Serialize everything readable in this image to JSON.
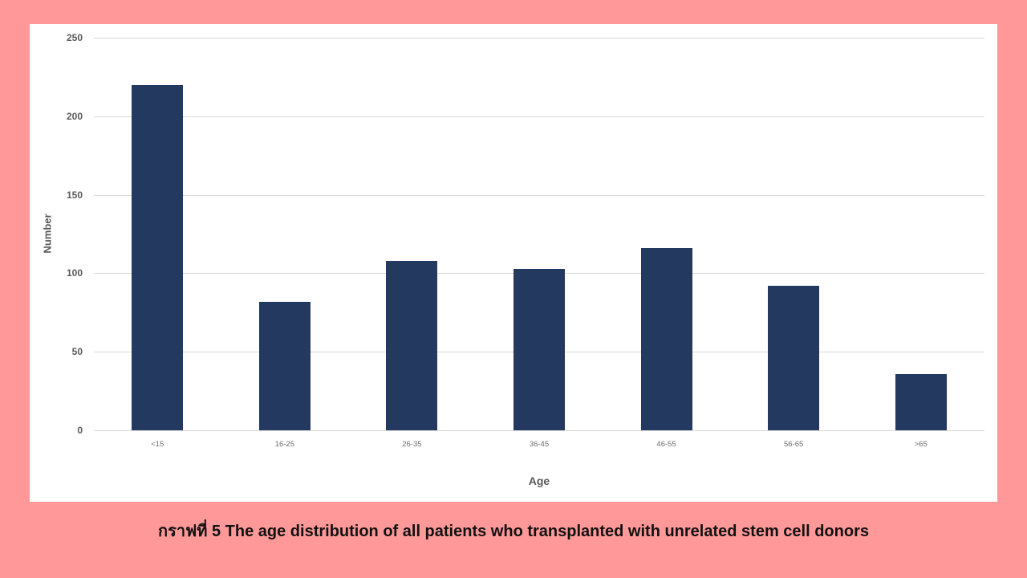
{
  "page": {
    "background_color": "#FF9999"
  },
  "chart_data": {
    "type": "bar",
    "categories": [
      "<15",
      "16-25",
      "26-35",
      "36-45",
      "46-55",
      "56-65",
      ">65"
    ],
    "values": [
      220,
      82,
      108,
      103,
      116,
      92,
      36
    ],
    "title": "",
    "xlabel": "Age",
    "ylabel": "Number",
    "ylim": [
      0,
      250
    ],
    "yticks": [
      0,
      50,
      100,
      150,
      200,
      250
    ],
    "grid": true,
    "legend": false,
    "bar_color": "#23395F",
    "gridline_color": "#D9D9D9",
    "axis_text_color": "#595959"
  },
  "caption": {
    "text": "กราฟที่ 5 The age distribution of all patients who transplanted with unrelated stem cell donors"
  }
}
